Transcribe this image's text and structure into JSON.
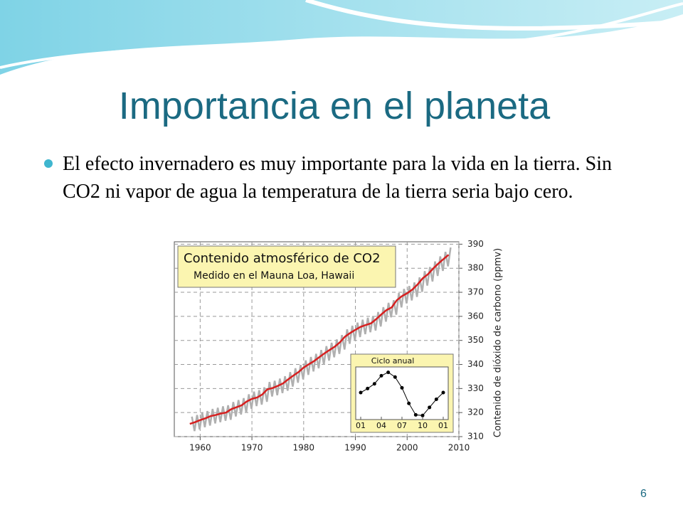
{
  "slide": {
    "title": "Importancia en el planeta",
    "bullet": "El efecto invernadero es muy importante para la vida en la tierra. Sin CO2 ni vapor de agua la temperatura de la tierra seria bajo cero.",
    "page_number": "6"
  },
  "chart_data": [
    {
      "type": "line",
      "title": "Contenido atmosférico de CO2",
      "subtitle": "Medido en el Mauna Loa, Hawaii",
      "y_label": "Contenido de dióxido de carbono (ppmv)",
      "xlim": [
        1955,
        2010
      ],
      "xticks": [
        1960,
        1970,
        1980,
        1990,
        2000,
        2010
      ],
      "ylim": [
        310,
        391
      ],
      "yticks": [
        310,
        320,
        330,
        340,
        350,
        360,
        370,
        380,
        390
      ],
      "grid": true,
      "series": [
        {
          "color": "#b0b0b0",
          "x": [
            1958.4,
            1958.9,
            1959.4,
            1959.9,
            1960.4,
            1960.9,
            1961.4,
            1961.9,
            1962.4,
            1962.9,
            1963.4,
            1963.9,
            1964.4,
            1964.9,
            1965.4,
            1965.9,
            1966.4,
            1966.9,
            1967.4,
            1967.9,
            1968.4,
            1968.9,
            1969.4,
            1969.9,
            1970.4,
            1970.9,
            1971.4,
            1971.9,
            1972.4,
            1972.9,
            1973.4,
            1973.9,
            1974.4,
            1974.9,
            1975.4,
            1975.9,
            1976.4,
            1976.9,
            1977.4,
            1977.9,
            1978.4,
            1978.9,
            1979.4,
            1979.9,
            1980.4,
            1980.9,
            1981.4,
            1981.9,
            1982.4,
            1982.9,
            1983.4,
            1983.9,
            1984.4,
            1984.9,
            1985.4,
            1985.9,
            1986.4,
            1986.9,
            1987.4,
            1987.9,
            1988.4,
            1988.9,
            1989.4,
            1989.9,
            1990.4,
            1990.9,
            1991.4,
            1991.9,
            1992.4,
            1992.9,
            1993.4,
            1993.9,
            1994.4,
            1994.9,
            1995.4,
            1995.9,
            1996.4,
            1996.9,
            1997.4,
            1997.9,
            1998.4,
            1998.9,
            1999.4,
            1999.9,
            2000.4,
            2000.9,
            2001.4,
            2001.9,
            2002.4,
            2002.9,
            2003.4,
            2003.9,
            2004.4,
            2004.9,
            2005.4,
            2005.9,
            2006.4,
            2006.9,
            2007.4,
            2007.9,
            2008.4
          ],
          "values": [
            318.3,
            312.3,
            319.0,
            313.0,
            319.9,
            313.9,
            320.6,
            314.6,
            321.5,
            315.5,
            322.0,
            316.0,
            322.6,
            316.6,
            323.0,
            317.0,
            324.4,
            318.4,
            325.2,
            319.2,
            326.0,
            320.0,
            327.6,
            321.6,
            328.7,
            322.7,
            329.3,
            323.3,
            330.5,
            324.5,
            332.7,
            326.7,
            333.2,
            327.2,
            334.1,
            328.1,
            335.1,
            329.1,
            336.8,
            330.8,
            338.4,
            332.4,
            339.8,
            333.8,
            341.7,
            335.7,
            343.1,
            337.1,
            344.4,
            338.4,
            346.0,
            340.0,
            347.6,
            341.6,
            349.0,
            343.0,
            350.4,
            344.4,
            352.2,
            346.2,
            354.6,
            348.6,
            356.1,
            350.1,
            357.4,
            351.4,
            358.6,
            352.6,
            359.4,
            353.4,
            360.1,
            354.1,
            361.8,
            355.8,
            363.8,
            357.8,
            365.6,
            359.6,
            366.7,
            360.7,
            369.7,
            363.7,
            371.4,
            365.4,
            372.6,
            366.6,
            374.1,
            368.1,
            376.2,
            370.2,
            378.8,
            372.8,
            380.5,
            374.5,
            382.8,
            376.8,
            384.9,
            378.9,
            386.8,
            380.8,
            388.6
          ]
        },
        {
          "color": "#d62020",
          "x": [
            1958,
            1959,
            1960,
            1961,
            1962,
            1963,
            1964,
            1965,
            1966,
            1967,
            1968,
            1969,
            1970,
            1971,
            1972,
            1973,
            1974,
            1975,
            1976,
            1977,
            1978,
            1979,
            1980,
            1981,
            1982,
            1983,
            1984,
            1985,
            1986,
            1987,
            1988,
            1989,
            1990,
            1991,
            1992,
            1993,
            1994,
            1995,
            1996,
            1997,
            1998,
            1999,
            2000,
            2001,
            2002,
            2003,
            2004,
            2005,
            2006,
            2007,
            2008
          ],
          "values": [
            315.3,
            316.0,
            316.9,
            317.6,
            318.5,
            319.0,
            319.6,
            320.0,
            321.4,
            322.2,
            323.0,
            324.6,
            325.7,
            326.3,
            327.5,
            329.7,
            330.2,
            331.1,
            332.1,
            333.8,
            335.4,
            336.8,
            338.7,
            340.1,
            341.4,
            343.0,
            344.6,
            346.0,
            347.4,
            349.2,
            351.6,
            353.1,
            354.4,
            355.6,
            356.4,
            357.1,
            358.8,
            360.8,
            362.6,
            363.7,
            366.7,
            368.4,
            369.6,
            371.1,
            373.2,
            375.8,
            377.5,
            379.8,
            381.9,
            383.8,
            385.6
          ]
        }
      ]
    },
    {
      "type": "line",
      "title": "Ciclo anual",
      "categories": [
        "01",
        null,
        null,
        "04",
        null,
        null,
        "07",
        null,
        null,
        "10",
        null,
        null,
        "01"
      ],
      "values": [
        0,
        0.6,
        1.3,
        2.5,
        3.0,
        2.3,
        0.7,
        -1.6,
        -3.3,
        -3.4,
        -2.2,
        -1.0,
        0
      ],
      "ylim": [
        -4,
        3.8
      ],
      "color": "#000000"
    }
  ]
}
